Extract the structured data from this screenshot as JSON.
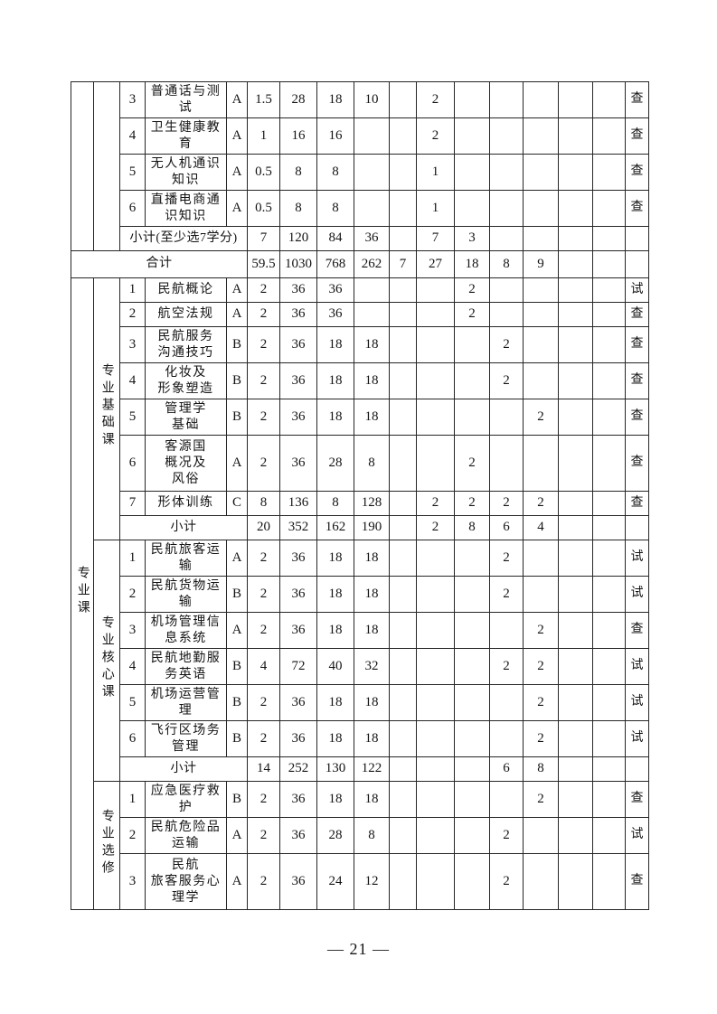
{
  "page_number": "— 21 —",
  "table": {
    "top_section": {
      "rows": [
        {
          "seq": "3",
          "name": "普通话与测\n试",
          "type": "A",
          "credits": "1.5",
          "total_hours": "28",
          "theory_hours": "18",
          "practice_hours": "10",
          "semesters": [
            "",
            "2",
            "",
            "",
            "",
            "",
            ""
          ],
          "exam": "查"
        },
        {
          "seq": "4",
          "name": "卫生健康教\n育",
          "type": "A",
          "credits": "1",
          "total_hours": "16",
          "theory_hours": "16",
          "practice_hours": "",
          "semesters": [
            "",
            "2",
            "",
            "",
            "",
            "",
            ""
          ],
          "exam": "查"
        },
        {
          "seq": "5",
          "name": "无人机通识\n知识",
          "type": "A",
          "credits": "0.5",
          "total_hours": "8",
          "theory_hours": "8",
          "practice_hours": "",
          "semesters": [
            "",
            "1",
            "",
            "",
            "",
            "",
            ""
          ],
          "exam": "查"
        },
        {
          "seq": "6",
          "name": "直播电商通\n识知识",
          "type": "A",
          "credits": "0.5",
          "total_hours": "8",
          "theory_hours": "8",
          "practice_hours": "",
          "semesters": [
            "",
            "1",
            "",
            "",
            "",
            "",
            ""
          ],
          "exam": "查"
        }
      ],
      "subtotal": {
        "label": "小计(至少选7学分)",
        "credits": "7",
        "total_hours": "120",
        "theory_hours": "84",
        "practice_hours": "36",
        "semesters": [
          "",
          "7",
          "3",
          "",
          "",
          "",
          ""
        ],
        "exam": ""
      }
    },
    "grand_total": {
      "label": "合计",
      "credits": "59.5",
      "total_hours": "1030",
      "theory_hours": "768",
      "practice_hours": "262",
      "semesters": [
        "7",
        "27",
        "18",
        "8",
        "9",
        "",
        ""
      ],
      "exam": ""
    },
    "major_group": {
      "category": "专业课",
      "subsections": [
        {
          "label": "专业基础课",
          "rows": [
            {
              "seq": "1",
              "name": "民航概论",
              "type": "A",
              "credits": "2",
              "total_hours": "36",
              "theory_hours": "36",
              "practice_hours": "",
              "semesters": [
                "",
                "",
                "2",
                "",
                "",
                "",
                ""
              ],
              "exam": "试"
            },
            {
              "seq": "2",
              "name": "航空法规",
              "type": "A",
              "credits": "2",
              "total_hours": "36",
              "theory_hours": "36",
              "practice_hours": "",
              "semesters": [
                "",
                "",
                "2",
                "",
                "",
                "",
                ""
              ],
              "exam": "查"
            },
            {
              "seq": "3",
              "name": "民航服务\n沟通技巧",
              "type": "B",
              "credits": "2",
              "total_hours": "36",
              "theory_hours": "18",
              "practice_hours": "18",
              "semesters": [
                "",
                "",
                "",
                "2",
                "",
                "",
                ""
              ],
              "exam": "查"
            },
            {
              "seq": "4",
              "name": "化妆及\n形象塑造",
              "type": "B",
              "credits": "2",
              "total_hours": "36",
              "theory_hours": "18",
              "practice_hours": "18",
              "semesters": [
                "",
                "",
                "",
                "2",
                "",
                "",
                ""
              ],
              "exam": "查"
            },
            {
              "seq": "5",
              "name": "管理学\n基础",
              "type": "B",
              "credits": "2",
              "total_hours": "36",
              "theory_hours": "18",
              "practice_hours": "18",
              "semesters": [
                "",
                "",
                "",
                "",
                "2",
                "",
                ""
              ],
              "exam": "查"
            },
            {
              "seq": "6",
              "name": "客源国\n概况及\n风俗",
              "type": "A",
              "credits": "2",
              "total_hours": "36",
              "theory_hours": "28",
              "practice_hours": "8",
              "semesters": [
                "",
                "",
                "2",
                "",
                "",
                "",
                ""
              ],
              "exam": "查"
            },
            {
              "seq": "7",
              "name": "形体训练",
              "type": "C",
              "credits": "8",
              "total_hours": "136",
              "theory_hours": "8",
              "practice_hours": "128",
              "semesters": [
                "",
                "2",
                "2",
                "2",
                "2",
                "",
                ""
              ],
              "exam": "查"
            }
          ],
          "subtotal": {
            "label": "小计",
            "credits": "20",
            "total_hours": "352",
            "theory_hours": "162",
            "practice_hours": "190",
            "semesters": [
              "",
              "2",
              "8",
              "6",
              "4",
              "",
              ""
            ],
            "exam": ""
          }
        },
        {
          "label": "专业核心课",
          "rows": [
            {
              "seq": "1",
              "name": "民航旅客运\n输",
              "type": "A",
              "credits": "2",
              "total_hours": "36",
              "theory_hours": "18",
              "practice_hours": "18",
              "semesters": [
                "",
                "",
                "",
                "2",
                "",
                "",
                ""
              ],
              "exam": "试"
            },
            {
              "seq": "2",
              "name": "民航货物运\n输",
              "type": "B",
              "credits": "2",
              "total_hours": "36",
              "theory_hours": "18",
              "practice_hours": "18",
              "semesters": [
                "",
                "",
                "",
                "2",
                "",
                "",
                ""
              ],
              "exam": "试"
            },
            {
              "seq": "3",
              "name": "机场管理信\n息系统",
              "type": "A",
              "credits": "2",
              "total_hours": "36",
              "theory_hours": "18",
              "practice_hours": "18",
              "semesters": [
                "",
                "",
                "",
                "",
                "2",
                "",
                ""
              ],
              "exam": "查"
            },
            {
              "seq": "4",
              "name": "民航地勤服\n务英语",
              "type": "B",
              "credits": "4",
              "total_hours": "72",
              "theory_hours": "40",
              "practice_hours": "32",
              "semesters": [
                "",
                "",
                "",
                "2",
                "2",
                "",
                ""
              ],
              "exam": "试"
            },
            {
              "seq": "5",
              "name": "机场运营管\n理",
              "type": "B",
              "credits": "2",
              "total_hours": "36",
              "theory_hours": "18",
              "practice_hours": "18",
              "semesters": [
                "",
                "",
                "",
                "",
                "2",
                "",
                ""
              ],
              "exam": "试"
            },
            {
              "seq": "6",
              "name": "飞行区场务\n管理",
              "type": "B",
              "credits": "2",
              "total_hours": "36",
              "theory_hours": "18",
              "practice_hours": "18",
              "semesters": [
                "",
                "",
                "",
                "",
                "2",
                "",
                ""
              ],
              "exam": "试"
            }
          ],
          "subtotal": {
            "label": "小计",
            "credits": "14",
            "total_hours": "252",
            "theory_hours": "130",
            "practice_hours": "122",
            "semesters": [
              "",
              "",
              "",
              "6",
              "8",
              "",
              ""
            ],
            "exam": ""
          }
        },
        {
          "label": "专业选修",
          "rows": [
            {
              "seq": "1",
              "name": "应急医疗救\n护",
              "type": "B",
              "credits": "2",
              "total_hours": "36",
              "theory_hours": "18",
              "practice_hours": "18",
              "semesters": [
                "",
                "",
                "",
                "",
                "2",
                "",
                ""
              ],
              "exam": "查"
            },
            {
              "seq": "2",
              "name": "民航危险品\n运输",
              "type": "A",
              "credits": "2",
              "total_hours": "36",
              "theory_hours": "28",
              "practice_hours": "8",
              "semesters": [
                "",
                "",
                "",
                "2",
                "",
                "",
                ""
              ],
              "exam": "试"
            },
            {
              "seq": "3",
              "name": "民航\n旅客服务心\n理学",
              "type": "A",
              "credits": "2",
              "total_hours": "36",
              "theory_hours": "24",
              "practice_hours": "12",
              "semesters": [
                "",
                "",
                "",
                "2",
                "",
                "",
                ""
              ],
              "exam": "查"
            }
          ],
          "subtotal": null
        }
      ]
    }
  }
}
